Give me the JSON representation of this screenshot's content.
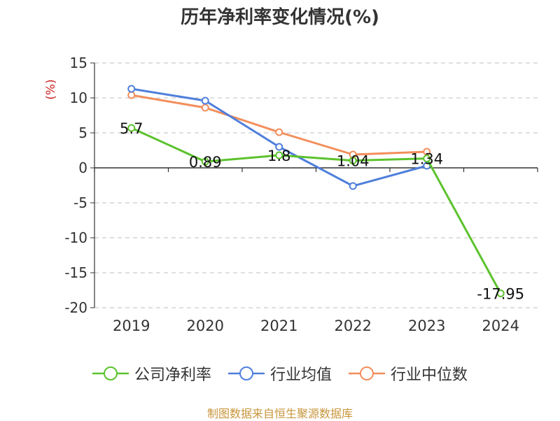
{
  "chart_data": {
    "type": "line",
    "title": "历年净利率变化情况(%)",
    "ylabel": "(%)",
    "xlabel": "",
    "categories": [
      "2019",
      "2020",
      "2021",
      "2022",
      "2023",
      "2024"
    ],
    "ylim": [
      -20,
      15
    ],
    "yticks": [
      15,
      10,
      5,
      0,
      -5,
      -10,
      -15,
      -20
    ],
    "grid": "horizontal-dashed",
    "legend_position": "bottom",
    "series": [
      {
        "name": "公司净利率",
        "color": "#5cc22d",
        "values": [
          5.7,
          0.89,
          1.8,
          1.04,
          1.34,
          -17.95
        ],
        "labels": [
          "5.7",
          "0.89",
          "1.8",
          "1.04",
          "1.34",
          "-17.95"
        ]
      },
      {
        "name": "行业均值",
        "color": "#4f7fdc",
        "values": [
          11.3,
          9.6,
          3.0,
          -2.6,
          0.3,
          null
        ]
      },
      {
        "name": "行业中位数",
        "color": "#f28e5b",
        "values": [
          10.4,
          8.6,
          5.1,
          1.9,
          2.3,
          null
        ]
      }
    ]
  },
  "source": "制图数据来自恒生聚源数据库"
}
